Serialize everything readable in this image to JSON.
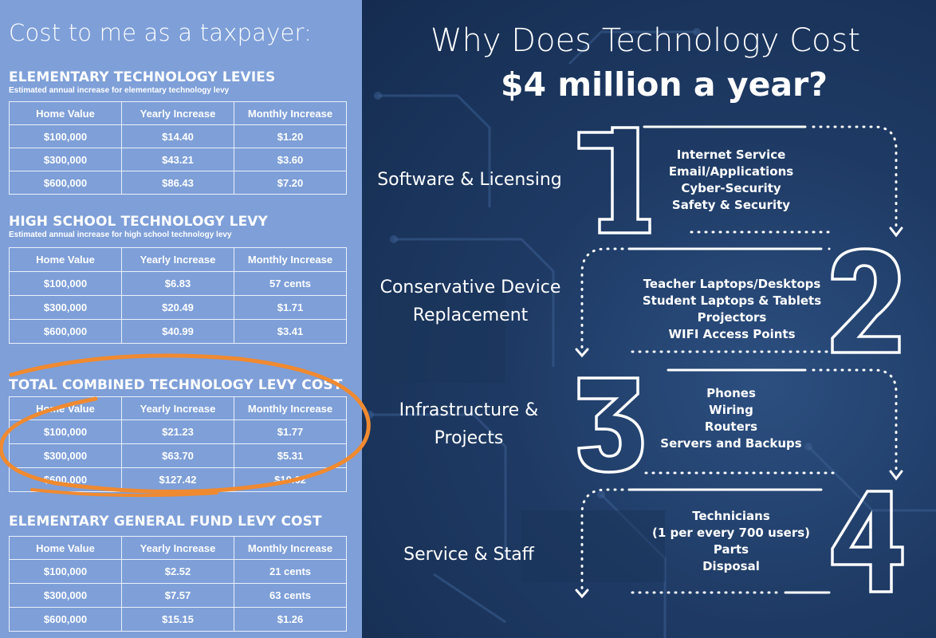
{
  "left_title": "Cost to me as a taxpayer:",
  "columns": [
    "Home Value",
    "Yearly Increase",
    "Monthly Increase"
  ],
  "sections": [
    {
      "heading": "ELEMENTARY TECHNOLOGY LEVIES",
      "subheading": "Estimated annual increase for elementary technology levy",
      "rows": [
        [
          "$100,000",
          "$14.40",
          "$1.20"
        ],
        [
          "$300,000",
          "$43.21",
          "$3.60"
        ],
        [
          "$600,000",
          "$86.43",
          "$7.20"
        ]
      ]
    },
    {
      "heading": "HIGH SCHOOL TECHNOLOGY LEVY",
      "subheading": "Estimated annual increase for high school technology levy",
      "rows": [
        [
          "$100,000",
          "$6.83",
          "57 cents"
        ],
        [
          "$300,000",
          "$20.49",
          "$1.71"
        ],
        [
          "$600,000",
          "$40.99",
          "$3.41"
        ]
      ]
    },
    {
      "heading": "TOTAL COMBINED TECHNOLOGY LEVY COST",
      "subheading": "",
      "rows": [
        [
          "$100,000",
          "$21.23",
          "$1.77"
        ],
        [
          "$300,000",
          "$63.70",
          "$5.31"
        ],
        [
          "$600,000",
          "$127.42",
          "$10.62"
        ]
      ]
    },
    {
      "heading": "ELEMENTARY GENERAL FUND LEVY COST",
      "subheading": "",
      "rows": [
        [
          "$100,000",
          "$2.52",
          "21 cents"
        ],
        [
          "$300,000",
          "$7.57",
          "63 cents"
        ],
        [
          "$600,000",
          "$15.15",
          "$1.26"
        ]
      ]
    }
  ],
  "title_line1": "Why Does Technology Cost",
  "title_line2": "$4 million a year?",
  "steps": [
    {
      "number": "1",
      "category": [
        "Software & Licensing"
      ],
      "items": [
        "Internet Service",
        "Email/Applications",
        "Cyber-Security",
        "Safety & Security"
      ]
    },
    {
      "number": "2",
      "category": [
        "Conservative Device",
        "Replacement"
      ],
      "items": [
        "Teacher Laptops/Desktops",
        "Student Laptops & Tablets",
        "Projectors",
        "WIFI Access Points"
      ]
    },
    {
      "number": "3",
      "category": [
        "Infrastructure &",
        "Projects"
      ],
      "items": [
        "Phones",
        "Wiring",
        "Routers",
        "Servers and Backups"
      ]
    },
    {
      "number": "4",
      "category": [
        "Service & Staff"
      ],
      "items": [
        "Technicians",
        "(1 per every 700 users)",
        "Parts",
        "Disposal"
      ]
    }
  ],
  "colors": {
    "left_bg": "#7e9fd8",
    "right_bg": "#1e3a64",
    "highlight": "#f08a30",
    "text": "#ffffff"
  }
}
